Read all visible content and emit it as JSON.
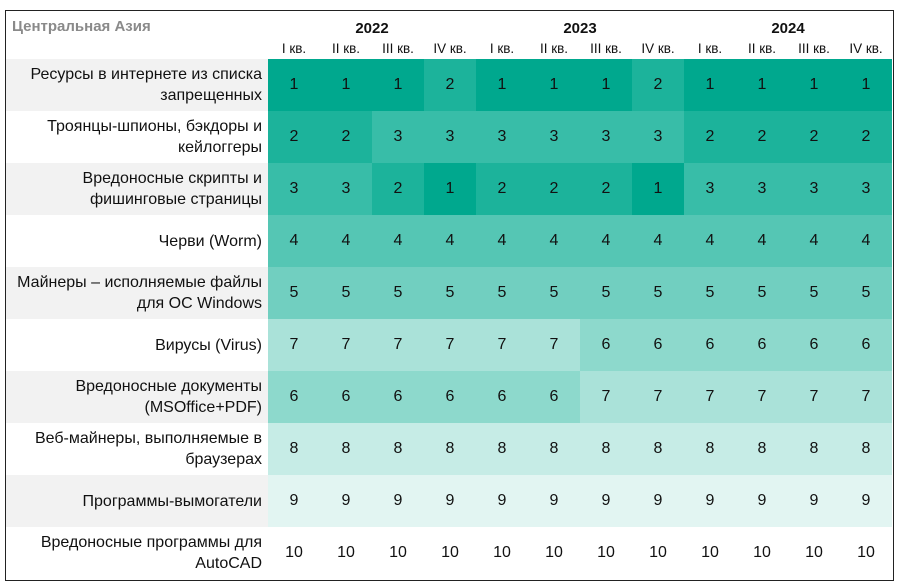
{
  "chart_data": {
    "type": "heatmap",
    "title": "Центральная Азия",
    "years": [
      "2022",
      "2023",
      "2024"
    ],
    "quarters": [
      "I кв.",
      "II кв.",
      "III кв.",
      "IV кв.",
      "I кв.",
      "II кв.",
      "III кв.",
      "IV кв.",
      "I кв.",
      "II кв.",
      "III кв.",
      "IV кв."
    ],
    "rows": [
      {
        "label": "Ресурсы в интернете из списка запрещенных",
        "values": [
          1,
          1,
          1,
          2,
          1,
          1,
          1,
          2,
          1,
          1,
          1,
          1
        ]
      },
      {
        "label": "Троянцы-шпионы, бэкдоры и кейлоггеры",
        "values": [
          2,
          2,
          3,
          3,
          3,
          3,
          3,
          3,
          2,
          2,
          2,
          2
        ]
      },
      {
        "label": "Вредоносные скрипты и фишинговые страницы",
        "values": [
          3,
          3,
          2,
          1,
          2,
          2,
          2,
          1,
          3,
          3,
          3,
          3
        ]
      },
      {
        "label": "Черви (Worm)",
        "values": [
          4,
          4,
          4,
          4,
          4,
          4,
          4,
          4,
          4,
          4,
          4,
          4
        ]
      },
      {
        "label": "Майнеры – исполняемые файлы для ОС Windows",
        "values": [
          5,
          5,
          5,
          5,
          5,
          5,
          5,
          5,
          5,
          5,
          5,
          5
        ]
      },
      {
        "label": "Вирусы (Virus)",
        "values": [
          7,
          7,
          7,
          7,
          7,
          7,
          6,
          6,
          6,
          6,
          6,
          6
        ]
      },
      {
        "label": "Вредоносные документы (MSOffice+PDF)",
        "values": [
          6,
          6,
          6,
          6,
          6,
          6,
          7,
          7,
          7,
          7,
          7,
          7
        ]
      },
      {
        "label": "Веб-майнеры, выполняемые в браузерах",
        "values": [
          8,
          8,
          8,
          8,
          8,
          8,
          8,
          8,
          8,
          8,
          8,
          8
        ]
      },
      {
        "label": "Программы-вымогатели",
        "values": [
          9,
          9,
          9,
          9,
          9,
          9,
          9,
          9,
          9,
          9,
          9,
          9
        ]
      },
      {
        "label": "Вредоносные программы для AutoCAD",
        "values": [
          10,
          10,
          10,
          10,
          10,
          10,
          10,
          10,
          10,
          10,
          10,
          10
        ]
      }
    ],
    "rank_colors": [
      "#00a88e",
      "#1cb39b",
      "#38bda8",
      "#55c6b4",
      "#71cfc0",
      "#8dd9cc",
      "#aae2d9",
      "#c6ece6",
      "#e2f5f2",
      "#ffffff"
    ],
    "label_stripe_color": "#f2f2f2"
  }
}
